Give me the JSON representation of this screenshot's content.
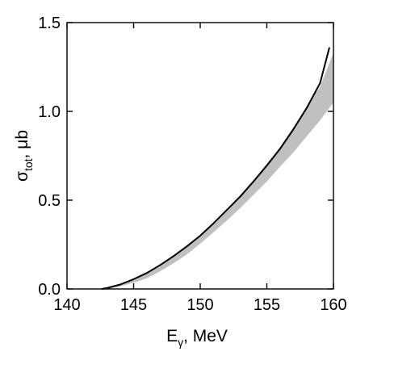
{
  "chart_data": {
    "type": "line",
    "xlabel": {
      "main": "E",
      "sub": "γ",
      "rest": ", MeV"
    },
    "ylabel": {
      "main": "σ",
      "sub": "tot",
      "rest": ", μb"
    },
    "xlim": [
      140,
      160
    ],
    "ylim": [
      0,
      1.5
    ],
    "xticks": [
      140,
      145,
      150,
      155,
      160
    ],
    "yticks": [
      0,
      0.5,
      1,
      1.5
    ],
    "xtick_labels": [
      "140",
      "145",
      "150",
      "155",
      "160"
    ],
    "ytick_labels": [
      "0.0",
      "0.5",
      "1.0",
      "1.5"
    ],
    "grid": false,
    "series": [
      {
        "kind": "line",
        "color": "#000000",
        "x": [
          142.6,
          143,
          144,
          145,
          146,
          147,
          148,
          149,
          150,
          151,
          152,
          153,
          154,
          155,
          156,
          157,
          158,
          159,
          159.7
        ],
        "y": [
          0.0,
          0.005,
          0.025,
          0.055,
          0.09,
          0.135,
          0.185,
          0.24,
          0.3,
          0.37,
          0.445,
          0.52,
          0.605,
          0.695,
          0.79,
          0.9,
          1.02,
          1.16,
          1.36
        ]
      },
      {
        "kind": "band",
        "color": "#c0c0c0",
        "x": [
          143,
          144,
          145,
          146,
          147,
          148,
          149,
          150,
          151,
          152,
          153,
          154,
          155,
          156,
          157,
          158,
          159,
          160
        ],
        "upper": [
          0.008,
          0.03,
          0.06,
          0.095,
          0.14,
          0.19,
          0.245,
          0.305,
          0.375,
          0.45,
          0.53,
          0.615,
          0.705,
          0.8,
          0.91,
          1.03,
          1.14,
          1.33
        ],
        "lower": [
          0.0,
          0.015,
          0.035,
          0.06,
          0.1,
          0.145,
          0.195,
          0.255,
          0.32,
          0.385,
          0.455,
          0.53,
          0.605,
          0.69,
          0.77,
          0.86,
          0.95,
          1.05
        ]
      }
    ]
  }
}
